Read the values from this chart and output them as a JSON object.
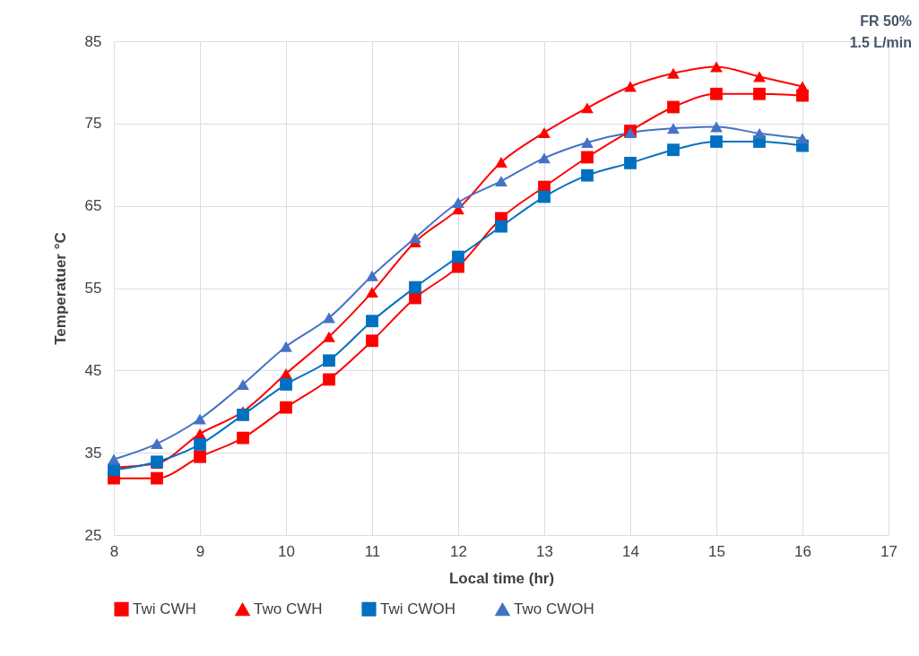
{
  "chart_data": {
    "type": "line",
    "xlabel": "Local time (hr)",
    "ylabel": "Temperatuer °C",
    "annotations": [
      "FR 50%",
      "1.5 L/min"
    ],
    "x": [
      8,
      8.5,
      9,
      9.5,
      10,
      10.5,
      11,
      11.5,
      12,
      12.5,
      13,
      13.5,
      14,
      14.5,
      15,
      15.5,
      16
    ],
    "series": [
      {
        "name": "Twi CWH",
        "color": "#ff0000",
        "marker": "square",
        "values": [
          31.9,
          31.9,
          34.5,
          36.8,
          40.5,
          43.9,
          48.6,
          53.8,
          57.6,
          63.5,
          67.3,
          70.9,
          74.1,
          77.0,
          78.6,
          78.6,
          78.4
        ]
      },
      {
        "name": "Two CWH",
        "color": "#ff0000",
        "marker": "triangle",
        "values": [
          33.2,
          33.7,
          37.3,
          40.0,
          44.6,
          49.1,
          54.5,
          60.6,
          64.6,
          70.3,
          73.9,
          76.9,
          79.5,
          81.1,
          81.9,
          80.7,
          79.5
        ]
      },
      {
        "name": "Twi CWOH",
        "color": "#0070c0",
        "marker": "square",
        "values": [
          32.9,
          33.9,
          36.0,
          39.6,
          43.3,
          46.2,
          51.0,
          55.1,
          58.8,
          62.5,
          66.1,
          68.7,
          70.2,
          71.8,
          72.8,
          72.8,
          72.3
        ]
      },
      {
        "name": "Two CWOH",
        "color": "#4472c4",
        "marker": "triangle",
        "values": [
          34.2,
          36.1,
          39.1,
          43.3,
          47.9,
          51.4,
          56.5,
          61.1,
          65.4,
          68.0,
          70.8,
          72.7,
          73.9,
          74.4,
          74.6,
          73.8,
          73.2
        ]
      }
    ],
    "xlim": [
      8,
      17
    ],
    "xticks": [
      8,
      9,
      10,
      11,
      12,
      13,
      14,
      15,
      16,
      17
    ],
    "ylim": [
      25,
      85
    ],
    "yticks": [
      25,
      35,
      45,
      55,
      65,
      75,
      85
    ],
    "grid": true,
    "legend": "bottom",
    "line_style": "solid"
  }
}
